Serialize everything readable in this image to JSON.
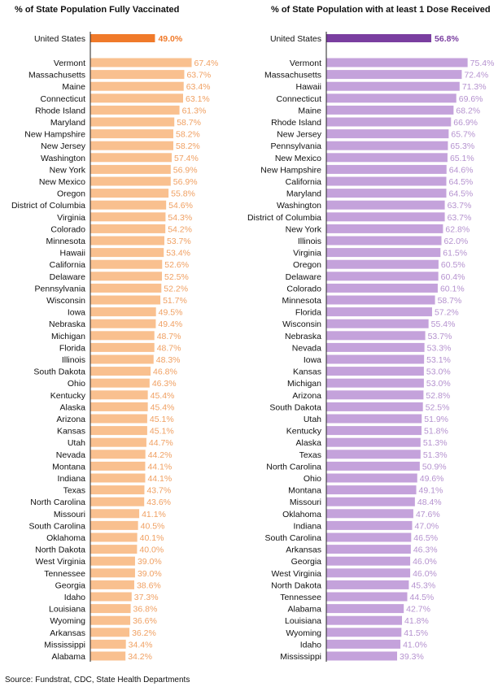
{
  "source": "Source: Fundstrat, CDC, State Health Departments",
  "colors": {
    "us_left": "#f07a2a",
    "states_left": "#f9c08f",
    "label_left": "#f0a062",
    "us_right": "#7a3ea0",
    "states_right": "#c4a2db",
    "label_right": "#b592cf"
  },
  "chart_data": [
    {
      "type": "bar",
      "orientation": "horizontal",
      "title": "% of State Population Fully Vaccinated",
      "xlim": [
        0,
        70
      ],
      "grid": false,
      "us": {
        "category": "United States",
        "value": 49.0,
        "label": "49.0%"
      },
      "categories": [
        "Vermont",
        "Massachusetts",
        "Maine",
        "Connecticut",
        "Rhode Island",
        "Maryland",
        "New Hampshire",
        "New Jersey",
        "Washington",
        "New York",
        "New Mexico",
        "Oregon",
        "District of Columbia",
        "Virginia",
        "Colorado",
        "Minnesota",
        "Hawaii",
        "California",
        "Delaware",
        "Pennsylvania",
        "Wisconsin",
        "Iowa",
        "Nebraska",
        "Michigan",
        "Florida",
        "Illinois",
        "South Dakota",
        "Ohio",
        "Kentucky",
        "Alaska",
        "Arizona",
        "Kansas",
        "Utah",
        "Nevada",
        "Montana",
        "Indiana",
        "Texas",
        "North Carolina",
        "Missouri",
        "South Carolina",
        "Oklahoma",
        "North Dakota",
        "West Virginia",
        "Tennessee",
        "Georgia",
        "Idaho",
        "Louisiana",
        "Wyoming",
        "Arkansas",
        "Mississippi",
        "Alabama"
      ],
      "values": [
        67.4,
        63.7,
        63.4,
        63.1,
        61.3,
        58.7,
        58.2,
        58.2,
        57.4,
        56.9,
        56.9,
        55.8,
        54.6,
        54.3,
        54.2,
        53.7,
        53.4,
        52.6,
        52.5,
        52.2,
        51.7,
        49.5,
        49.4,
        48.7,
        48.7,
        48.3,
        46.8,
        46.3,
        45.4,
        45.4,
        45.1,
        45.1,
        44.7,
        44.2,
        44.1,
        44.1,
        43.7,
        43.6,
        41.1,
        40.5,
        40.1,
        40.0,
        39.0,
        39.0,
        38.6,
        37.3,
        36.8,
        36.6,
        36.2,
        34.4,
        34.2
      ],
      "labels": [
        "67.4%",
        "63.7%",
        "63.4%",
        "63.1%",
        "61.3%",
        "58.7%",
        "58.2%",
        "58.2%",
        "57.4%",
        "56.9%",
        "56.9%",
        "55.8%",
        "54.6%",
        "54.3%",
        "54.2%",
        "53.7%",
        "53.4%",
        "52.6%",
        "52.5%",
        "52.2%",
        "51.7%",
        "49.5%",
        "49.4%",
        "48.7%",
        "48.7%",
        "48.3%",
        "46.8%",
        "46.3%",
        "45.4%",
        "45.4%",
        "45.1%",
        "45.1%",
        "44.7%",
        "44.2%",
        "44.1%",
        "44.1%",
        "43.7%",
        "43.6%",
        "41.1%",
        "40.5%",
        "40.1%",
        "40.0%",
        "39.0%",
        "39.0%",
        "38.6%",
        "37.3%",
        "36.8%",
        "36.6%",
        "36.2%",
        "34.4%",
        "34.2%"
      ]
    },
    {
      "type": "bar",
      "orientation": "horizontal",
      "title": "% of State Population with at least 1 Dose Received",
      "xlim": [
        0,
        80
      ],
      "grid": false,
      "us": {
        "category": "United States",
        "value": 56.8,
        "label": "56.8%"
      },
      "categories": [
        "Vermont",
        "Massachusetts",
        "Hawaii",
        "Connecticut",
        "Maine",
        "Rhode Island",
        "New Jersey",
        "Pennsylvania",
        "New Mexico",
        "New Hampshire",
        "California",
        "Maryland",
        "Washington",
        "District of Columbia",
        "New York",
        "Illinois",
        "Virginia",
        "Oregon",
        "Delaware",
        "Colorado",
        "Minnesota",
        "Florida",
        "Wisconsin",
        "Nebraska",
        "Nevada",
        "Iowa",
        "Kansas",
        "Michigan",
        "Arizona",
        "South Dakota",
        "Utah",
        "Kentucky",
        "Alaska",
        "Texas",
        "North Carolina",
        "Ohio",
        "Montana",
        "Missouri",
        "Oklahoma",
        "Indiana",
        "South Carolina",
        "Arkansas",
        "Georgia",
        "West Virginia",
        "North Dakota",
        "Tennessee",
        "Alabama",
        "Louisiana",
        "Wyoming",
        "Idaho",
        "Mississippi"
      ],
      "values": [
        75.4,
        72.4,
        71.3,
        69.6,
        68.2,
        66.9,
        65.7,
        65.3,
        65.1,
        64.6,
        64.5,
        64.5,
        63.7,
        63.7,
        62.8,
        62.0,
        61.5,
        60.5,
        60.4,
        60.1,
        58.7,
        57.2,
        55.4,
        53.7,
        53.3,
        53.1,
        53.0,
        53.0,
        52.8,
        52.5,
        51.9,
        51.8,
        51.3,
        51.3,
        50.9,
        49.6,
        49.1,
        48.4,
        47.6,
        47.0,
        46.5,
        46.3,
        46.0,
        46.0,
        45.3,
        44.5,
        42.7,
        41.8,
        41.5,
        41.0,
        39.3
      ],
      "labels": [
        "75.4%",
        "72.4%",
        "71.3%",
        "69.6%",
        "68.2%",
        "66.9%",
        "65.7%",
        "65.3%",
        "65.1%",
        "64.6%",
        "64.5%",
        "64.5%",
        "63.7%",
        "63.7%",
        "62.8%",
        "62.0%",
        "61.5%",
        "60.5%",
        "60.4%",
        "60.1%",
        "58.7%",
        "57.2%",
        "55.4%",
        "53.7%",
        "53.3%",
        "53.1%",
        "53.0%",
        "53.0%",
        "52.8%",
        "52.5%",
        "51.9%",
        "51.8%",
        "51.3%",
        "51.3%",
        "50.9%",
        "49.6%",
        "49.1%",
        "48.4%",
        "47.6%",
        "47.0%",
        "46.5%",
        "46.3%",
        "46.0%",
        "46.0%",
        "45.3%",
        "44.5%",
        "42.7%",
        "41.8%",
        "41.5%",
        "41.0%",
        "39.3%"
      ]
    }
  ]
}
